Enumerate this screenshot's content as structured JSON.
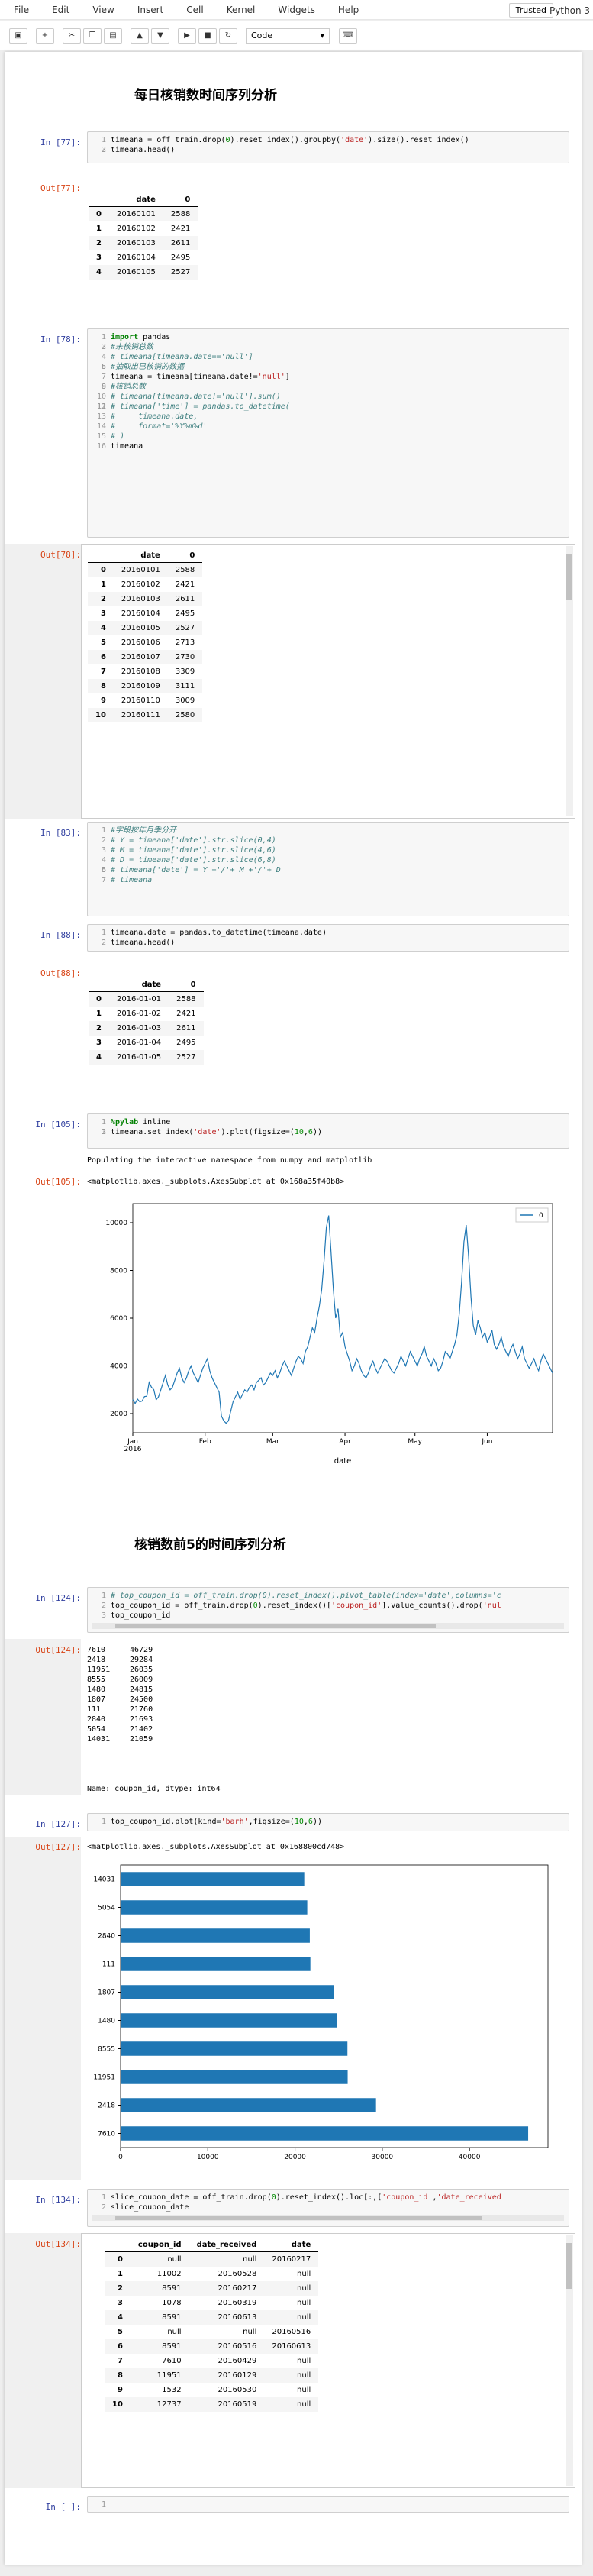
{
  "menu": {
    "items": [
      "File",
      "Edit",
      "View",
      "Insert",
      "Cell",
      "Kernel",
      "Widgets",
      "Help"
    ],
    "trusted": "Trusted",
    "kernel": "Python 3"
  },
  "toolbar": {
    "cell_type": "Code"
  },
  "section1": "每日核销数时间序列分析",
  "section2": "核销数前5的时间序列分析",
  "c77": {
    "in": "In [77]:",
    "out": "Out[77]:"
  },
  "c78": {
    "in": "In [78]:",
    "out": "Out[78]:"
  },
  "c83": {
    "in": "In [83]:"
  },
  "c88": {
    "in": "In [88]:",
    "out": "Out[88]:"
  },
  "c105": {
    "in": "In [105]:",
    "out": "Out[105]:",
    "stdout": "Populating the interactive namespace from numpy and matplotlib",
    "repr": "<matplotlib.axes._subplots.AxesSubplot at 0x168a35f40b8>"
  },
  "c124": {
    "in": "In [124]:",
    "out": "Out[124]:",
    "dtype": "Name: coupon_id, dtype: int64"
  },
  "c127": {
    "in": "In [127]:",
    "out": "Out[127]:",
    "repr": "<matplotlib.axes._subplots.AxesSubplot at 0x168800cd748>"
  },
  "c134": {
    "in": "In [134]:",
    "out": "Out[134]:"
  },
  "cempty": {
    "in": "In [ ]:"
  },
  "t77": {
    "cols": [
      "date",
      "0"
    ],
    "rows": [
      [
        "0",
        "20160101",
        "2588"
      ],
      [
        "1",
        "20160102",
        "2421"
      ],
      [
        "2",
        "20160103",
        "2611"
      ],
      [
        "3",
        "20160104",
        "2495"
      ],
      [
        "4",
        "20160105",
        "2527"
      ]
    ]
  },
  "t78": {
    "cols": [
      "date",
      "0"
    ],
    "rows": [
      [
        "0",
        "20160101",
        "2588"
      ],
      [
        "1",
        "20160102",
        "2421"
      ],
      [
        "2",
        "20160103",
        "2611"
      ],
      [
        "3",
        "20160104",
        "2495"
      ],
      [
        "4",
        "20160105",
        "2527"
      ],
      [
        "5",
        "20160106",
        "2713"
      ],
      [
        "6",
        "20160107",
        "2730"
      ],
      [
        "7",
        "20160108",
        "3309"
      ],
      [
        "8",
        "20160109",
        "3111"
      ],
      [
        "9",
        "20160110",
        "3009"
      ],
      [
        "10",
        "20160111",
        "2580"
      ]
    ]
  },
  "t88": {
    "cols": [
      "date",
      "0"
    ],
    "rows": [
      [
        "0",
        "2016-01-01",
        "2588"
      ],
      [
        "1",
        "2016-01-02",
        "2421"
      ],
      [
        "2",
        "2016-01-03",
        "2611"
      ],
      [
        "3",
        "2016-01-04",
        "2495"
      ],
      [
        "4",
        "2016-01-05",
        "2527"
      ]
    ]
  },
  "s124": [
    [
      "7610",
      "46729"
    ],
    [
      "2418",
      "29284"
    ],
    [
      "11951",
      "26035"
    ],
    [
      "8555",
      "26009"
    ],
    [
      "1480",
      "24815"
    ],
    [
      "1807",
      "24500"
    ],
    [
      "111",
      "21760"
    ],
    [
      "2840",
      "21693"
    ],
    [
      "5054",
      "21402"
    ],
    [
      "14031",
      "21059"
    ]
  ],
  "t134": {
    "cols": [
      "coupon_id",
      "date_received",
      "date"
    ],
    "rows": [
      [
        "0",
        "null",
        "null",
        "20160217"
      ],
      [
        "1",
        "11002",
        "20160528",
        "null"
      ],
      [
        "2",
        "8591",
        "20160217",
        "null"
      ],
      [
        "3",
        "1078",
        "20160319",
        "null"
      ],
      [
        "4",
        "8591",
        "20160613",
        "null"
      ],
      [
        "5",
        "null",
        "null",
        "20160516"
      ],
      [
        "6",
        "8591",
        "20160516",
        "20160613"
      ],
      [
        "7",
        "7610",
        "20160429",
        "null"
      ],
      [
        "8",
        "11951",
        "20160129",
        "null"
      ],
      [
        "9",
        "1532",
        "20160530",
        "null"
      ],
      [
        "10",
        "12737",
        "20160519",
        "null"
      ]
    ]
  },
  "chart_data": [
    {
      "type": "line",
      "title": "",
      "xlabel": "date",
      "ylabel": "",
      "ylim": [
        1200,
        10800
      ],
      "yticks": [
        2000,
        4000,
        6000,
        8000,
        10000
      ],
      "xticks": [
        "Jan\n2016",
        "Feb",
        "Mar",
        "Apr",
        "May",
        "Jun"
      ],
      "legend": "top-right",
      "series": [
        {
          "name": "0",
          "x_start": "2016-01-01",
          "x_end": "2016-06-30",
          "values": [
            2588,
            2421,
            2611,
            2495,
            2527,
            2713,
            2730,
            3309,
            3111,
            3009,
            2580,
            2700,
            3000,
            3300,
            3600,
            3200,
            3000,
            3100,
            3400,
            3700,
            3900,
            3500,
            3300,
            3500,
            3800,
            4000,
            3700,
            3500,
            3300,
            3600,
            3900,
            4100,
            4300,
            3800,
            3500,
            3300,
            3100,
            2900,
            1900,
            1700,
            1600,
            1700,
            2100,
            2500,
            2700,
            2900,
            2600,
            2800,
            3000,
            2900,
            3100,
            3200,
            3000,
            3300,
            3400,
            3500,
            3200,
            3300,
            3500,
            3700,
            3600,
            3800,
            3500,
            3700,
            4000,
            4200,
            4000,
            3800,
            3600,
            3900,
            4200,
            4400,
            4300,
            4100,
            4600,
            4800,
            5200,
            5600,
            5400,
            6000,
            6500,
            7200,
            8400,
            9800,
            10300,
            8800,
            7200,
            6000,
            6400,
            5200,
            5400,
            4800,
            4500,
            4200,
            3800,
            4000,
            4300,
            4100,
            3800,
            3600,
            3500,
            3700,
            4000,
            4200,
            3900,
            3700,
            3900,
            4100,
            4300,
            4200,
            4000,
            3800,
            3700,
            3900,
            4100,
            4400,
            4200,
            4000,
            4300,
            4600,
            4400,
            4200,
            4000,
            4300,
            4500,
            4800,
            4400,
            4200,
            4000,
            4300,
            4100,
            3800,
            3900,
            4200,
            4600,
            4500,
            4300,
            4600,
            4900,
            5300,
            6200,
            7500,
            9200,
            9900,
            8600,
            6900,
            5700,
            5300,
            5900,
            5600,
            5200,
            5400,
            5000,
            5200,
            5500,
            4900,
            4700,
            4900,
            5200,
            4800,
            4600,
            4400,
            4700,
            4900,
            4600,
            4300,
            4500,
            4800,
            4300,
            4100,
            3900,
            4100,
            4300,
            4000,
            3800,
            4200,
            4500,
            4300,
            4100,
            3900,
            3700
          ]
        }
      ]
    },
    {
      "type": "bar",
      "orientation": "horizontal",
      "title": "",
      "xlabel": "",
      "ylabel": "",
      "categories": [
        "7610",
        "2418",
        "11951",
        "8555",
        "1480",
        "1807",
        "111",
        "2840",
        "5054",
        "14031"
      ],
      "values": [
        46729,
        29284,
        26035,
        26009,
        24815,
        24500,
        21760,
        21693,
        21402,
        21059
      ],
      "xlim": [
        0,
        49000
      ],
      "xticks": [
        0,
        10000,
        20000,
        30000,
        40000
      ]
    }
  ]
}
